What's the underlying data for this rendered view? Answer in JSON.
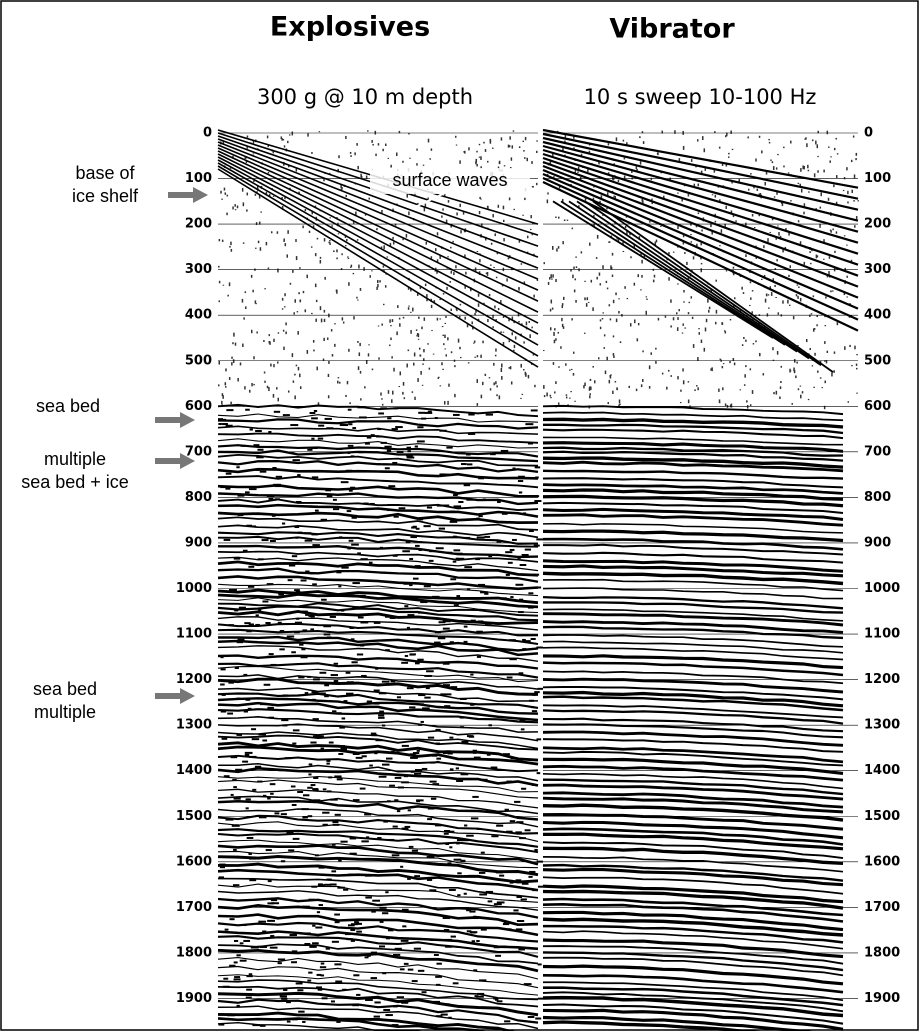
{
  "titles": [
    "Explosives",
    "Vibrator"
  ],
  "subtitles": [
    "300 g  @ 10 m depth",
    "10 s sweep 10-100 Hz"
  ],
  "time_labels": [
    0,
    100,
    200,
    300,
    400,
    500,
    600,
    700,
    800,
    900,
    1000,
    1100,
    1200,
    1300,
    1400,
    1500,
    1600,
    1700,
    1800,
    1900
  ],
  "annotations": [
    {
      "lines": [
        "base of",
        "ice shelf"
      ]
    },
    {
      "lines": [
        "sea bed"
      ]
    },
    {
      "lines": [
        "multiple",
        "sea bed + ice"
      ]
    },
    {
      "lines": [
        "sea bed",
        "multiple"
      ]
    }
  ],
  "inline_annotation": "surface waves"
}
